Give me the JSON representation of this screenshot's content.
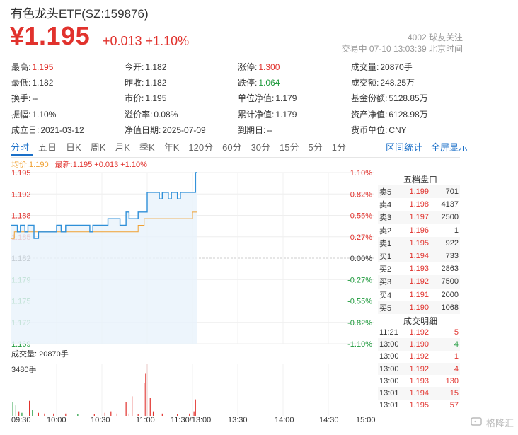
{
  "header": {
    "title": "有色龙头ETF(SZ:159876)",
    "price": "¥1.195",
    "change": "+0.013 +1.10%",
    "follow": "4002 球友关注",
    "status": "交易中 07-10 13:03:39 北京时间"
  },
  "info": [
    [
      {
        "k": "最高:",
        "v": "1.195",
        "c": "red"
      },
      {
        "k": "今开:",
        "v": "1.182",
        "c": ""
      },
      {
        "k": "涨停:",
        "v": "1.300",
        "c": "red"
      },
      {
        "k": "成交量:",
        "v": "20870手",
        "c": ""
      }
    ],
    [
      {
        "k": "最低:",
        "v": "1.182",
        "c": ""
      },
      {
        "k": "昨收:",
        "v": "1.182",
        "c": ""
      },
      {
        "k": "跌停:",
        "v": "1.064",
        "c": "green"
      },
      {
        "k": "成交额:",
        "v": "248.25万",
        "c": ""
      }
    ],
    [
      {
        "k": "换手:",
        "v": "--",
        "c": ""
      },
      {
        "k": "市价:",
        "v": "1.195",
        "c": ""
      },
      {
        "k": "单位净值:",
        "v": "1.179",
        "c": ""
      },
      {
        "k": "基金份额:",
        "v": "5128.85万",
        "c": ""
      }
    ],
    [
      {
        "k": "振幅:",
        "v": "1.10%",
        "c": ""
      },
      {
        "k": "溢价率:",
        "v": "0.08%",
        "c": ""
      },
      {
        "k": "累计净值:",
        "v": "1.179",
        "c": ""
      },
      {
        "k": "资产净值:",
        "v": "6128.98万",
        "c": ""
      }
    ],
    [
      {
        "k": "成立日:",
        "v": "2021-03-12",
        "c": ""
      },
      {
        "k": "净值日期:",
        "v": "2025-07-09",
        "c": ""
      },
      {
        "k": "到期日:",
        "v": "--",
        "c": ""
      },
      {
        "k": "货币单位:",
        "v": "CNY",
        "c": ""
      }
    ]
  ],
  "tabs": [
    "分时",
    "五日",
    "日K",
    "周K",
    "月K",
    "季K",
    "年K",
    "120分",
    "60分",
    "30分",
    "15分",
    "5分",
    "1分"
  ],
  "active_tab": "分时",
  "tabs_right": [
    "区间统计",
    "全屏显示"
  ],
  "legend": {
    "avg": "均价:1.190",
    "latest": "最新:1.195 +0.013 +1.10%"
  },
  "ladder_title": "五档盘口",
  "ladder": [
    {
      "n": "卖5",
      "p": "1.199",
      "q": "701"
    },
    {
      "n": "卖4",
      "p": "1.198",
      "q": "4137"
    },
    {
      "n": "卖3",
      "p": "1.197",
      "q": "2500"
    },
    {
      "n": "卖2",
      "p": "1.196",
      "q": "1"
    },
    {
      "n": "卖1",
      "p": "1.195",
      "q": "922"
    },
    {
      "n": "买1",
      "p": "1.194",
      "q": "733"
    },
    {
      "n": "买2",
      "p": "1.193",
      "q": "2863"
    },
    {
      "n": "买3",
      "p": "1.192",
      "q": "7500"
    },
    {
      "n": "买4",
      "p": "1.191",
      "q": "2000"
    },
    {
      "n": "买5",
      "p": "1.190",
      "q": "1068"
    }
  ],
  "deals_title": "成交明细",
  "deals": [
    {
      "t": "11:21",
      "p": "1.192",
      "q": "5",
      "c": "red"
    },
    {
      "t": "13:00",
      "p": "1.190",
      "q": "4",
      "c": "green"
    },
    {
      "t": "13:00",
      "p": "1.192",
      "q": "1",
      "c": "red"
    },
    {
      "t": "13:00",
      "p": "1.192",
      "q": "4",
      "c": "red"
    },
    {
      "t": "13:00",
      "p": "1.193",
      "q": "130",
      "c": "red"
    },
    {
      "t": "13:01",
      "p": "1.194",
      "q": "15",
      "c": "red"
    },
    {
      "t": "13:01",
      "p": "1.195",
      "q": "57",
      "c": "red"
    }
  ],
  "volume": {
    "label": "成交量: 20870手",
    "max_label": "3480手"
  },
  "colors": {
    "up": "#e1322d",
    "down": "#1e9a3c",
    "price_line": "#2e8fd8",
    "avg_line": "#f0a030",
    "link": "#1a6fc8"
  },
  "watermark": "格隆汇",
  "chart_data": {
    "type": "line",
    "x_ticks": [
      "09:30",
      "10:00",
      "10:30",
      "11:00",
      "11:30/13:00",
      "13:30",
      "14:00",
      "14:30",
      "15:00"
    ],
    "y_ticks_left": [
      "1.195",
      "1.192",
      "1.188",
      "1.185",
      "1.182",
      "1.179",
      "1.175",
      "1.172",
      "1.169"
    ],
    "y_ticks_right": [
      "1.10%",
      "0.82%",
      "0.55%",
      "0.27%",
      "0.00%",
      "-0.27%",
      "-0.55%",
      "-0.82%",
      "-1.10%"
    ],
    "prev_close": 1.182,
    "ylim": [
      1.169,
      1.195
    ],
    "price_series": [
      {
        "t": 0,
        "v": 1.187
      },
      {
        "t": 3,
        "v": 1.187
      },
      {
        "t": 4,
        "v": 1.186
      },
      {
        "t": 6,
        "v": 1.187
      },
      {
        "t": 9,
        "v": 1.186
      },
      {
        "t": 11,
        "v": 1.187
      },
      {
        "t": 13,
        "v": 1.187
      },
      {
        "t": 15,
        "v": 1.185
      },
      {
        "t": 18,
        "v": 1.186
      },
      {
        "t": 20,
        "v": 1.186
      },
      {
        "t": 28,
        "v": 1.186
      },
      {
        "t": 30,
        "v": 1.187
      },
      {
        "t": 33,
        "v": 1.186
      },
      {
        "t": 36,
        "v": 1.187
      },
      {
        "t": 52,
        "v": 1.186
      },
      {
        "t": 54,
        "v": 1.187
      },
      {
        "t": 62,
        "v": 1.187
      },
      {
        "t": 64,
        "v": 1.188
      },
      {
        "t": 70,
        "v": 1.188
      },
      {
        "t": 72,
        "v": 1.187
      },
      {
        "t": 76,
        "v": 1.189
      },
      {
        "t": 78,
        "v": 1.188
      },
      {
        "t": 84,
        "v": 1.189
      },
      {
        "t": 88,
        "v": 1.189
      },
      {
        "t": 90,
        "v": 1.192
      },
      {
        "t": 96,
        "v": 1.192
      },
      {
        "t": 98,
        "v": 1.191
      },
      {
        "t": 100,
        "v": 1.192
      },
      {
        "t": 104,
        "v": 1.191
      },
      {
        "t": 106,
        "v": 1.192
      },
      {
        "t": 110,
        "v": 1.191
      },
      {
        "t": 112,
        "v": 1.192
      },
      {
        "t": 118,
        "v": 1.192
      },
      {
        "t": 120,
        "v": 1.192
      },
      {
        "t": 122,
        "v": 1.195
      },
      {
        "t": 123,
        "v": 1.195
      }
    ],
    "avg_series": [
      {
        "t": 0,
        "v": 1.185
      },
      {
        "t": 2,
        "v": 1.186
      },
      {
        "t": 10,
        "v": 1.186
      },
      {
        "t": 18,
        "v": 1.186
      },
      {
        "t": 30,
        "v": 1.186
      },
      {
        "t": 60,
        "v": 1.186
      },
      {
        "t": 80,
        "v": 1.186
      },
      {
        "t": 84,
        "v": 1.187
      },
      {
        "t": 88,
        "v": 1.188
      },
      {
        "t": 110,
        "v": 1.188
      },
      {
        "t": 118,
        "v": 1.188
      },
      {
        "t": 120,
        "v": 1.189
      },
      {
        "t": 123,
        "v": 1.189
      }
    ],
    "volume_series": [
      {
        "t": 1,
        "v": 900
      },
      {
        "t": 3,
        "v": 700
      },
      {
        "t": 5,
        "v": 300
      },
      {
        "t": 7,
        "v": 200
      },
      {
        "t": 12,
        "v": 1000
      },
      {
        "t": 14,
        "v": 400
      },
      {
        "t": 18,
        "v": 200
      },
      {
        "t": 22,
        "v": 150
      },
      {
        "t": 28,
        "v": 150
      },
      {
        "t": 36,
        "v": 150
      },
      {
        "t": 44,
        "v": 100
      },
      {
        "t": 55,
        "v": 100
      },
      {
        "t": 62,
        "v": 200
      },
      {
        "t": 66,
        "v": 300
      },
      {
        "t": 70,
        "v": 150
      },
      {
        "t": 76,
        "v": 900
      },
      {
        "t": 78,
        "v": 150
      },
      {
        "t": 80,
        "v": 1300
      },
      {
        "t": 84,
        "v": 100
      },
      {
        "t": 88,
        "v": 2200
      },
      {
        "t": 89,
        "v": 2800
      },
      {
        "t": 90,
        "v": 3480
      },
      {
        "t": 92,
        "v": 1200
      },
      {
        "t": 94,
        "v": 300
      },
      {
        "t": 100,
        "v": 150
      },
      {
        "t": 110,
        "v": 100
      },
      {
        "t": 118,
        "v": 150
      },
      {
        "t": 121,
        "v": 300
      },
      {
        "t": 122,
        "v": 1100
      }
    ],
    "total_minutes": 240
  }
}
